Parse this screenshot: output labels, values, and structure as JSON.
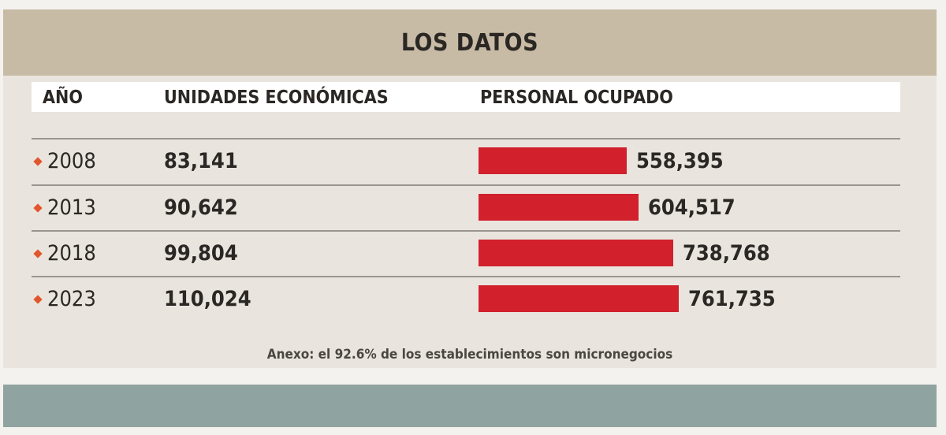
{
  "title": "LOS DATOS",
  "headers": {
    "year": "AÑO",
    "units": "UNIDADES ECONÓMICAS",
    "personal": "PERSONAL OCUPADO"
  },
  "rows": [
    {
      "year": "2008",
      "units": "83,141",
      "personal": "558,395"
    },
    {
      "year": "2013",
      "units": "90,642",
      "personal": "604,517"
    },
    {
      "year": "2018",
      "units": "99,804",
      "personal": "738,768"
    },
    {
      "year": "2023",
      "units": "110,024",
      "personal": "761,735"
    }
  ],
  "note": "Anexo: el 92.6% de los establecimientos son micronegocios",
  "chart_data": {
    "type": "bar",
    "title": "LOS DATOS",
    "categories": [
      "2008",
      "2013",
      "2018",
      "2023"
    ],
    "series": [
      {
        "name": "UNIDADES ECONÓMICAS",
        "values": [
          83141,
          90642,
          99804,
          110024
        ]
      },
      {
        "name": "PERSONAL OCUPADO",
        "values": [
          558395,
          604517,
          738768,
          761735
        ]
      }
    ],
    "bar_series": "PERSONAL OCUPADO",
    "xlim": [
      0,
      1000000
    ],
    "annotations": [
      "Anexo: el 92.6% de los establecimientos son micronegocios"
    ]
  },
  "colors": {
    "bar": "#d2202c",
    "bullet": "#e2562d",
    "title_band": "#c8bba6",
    "footer_band": "#8fa3a1"
  }
}
